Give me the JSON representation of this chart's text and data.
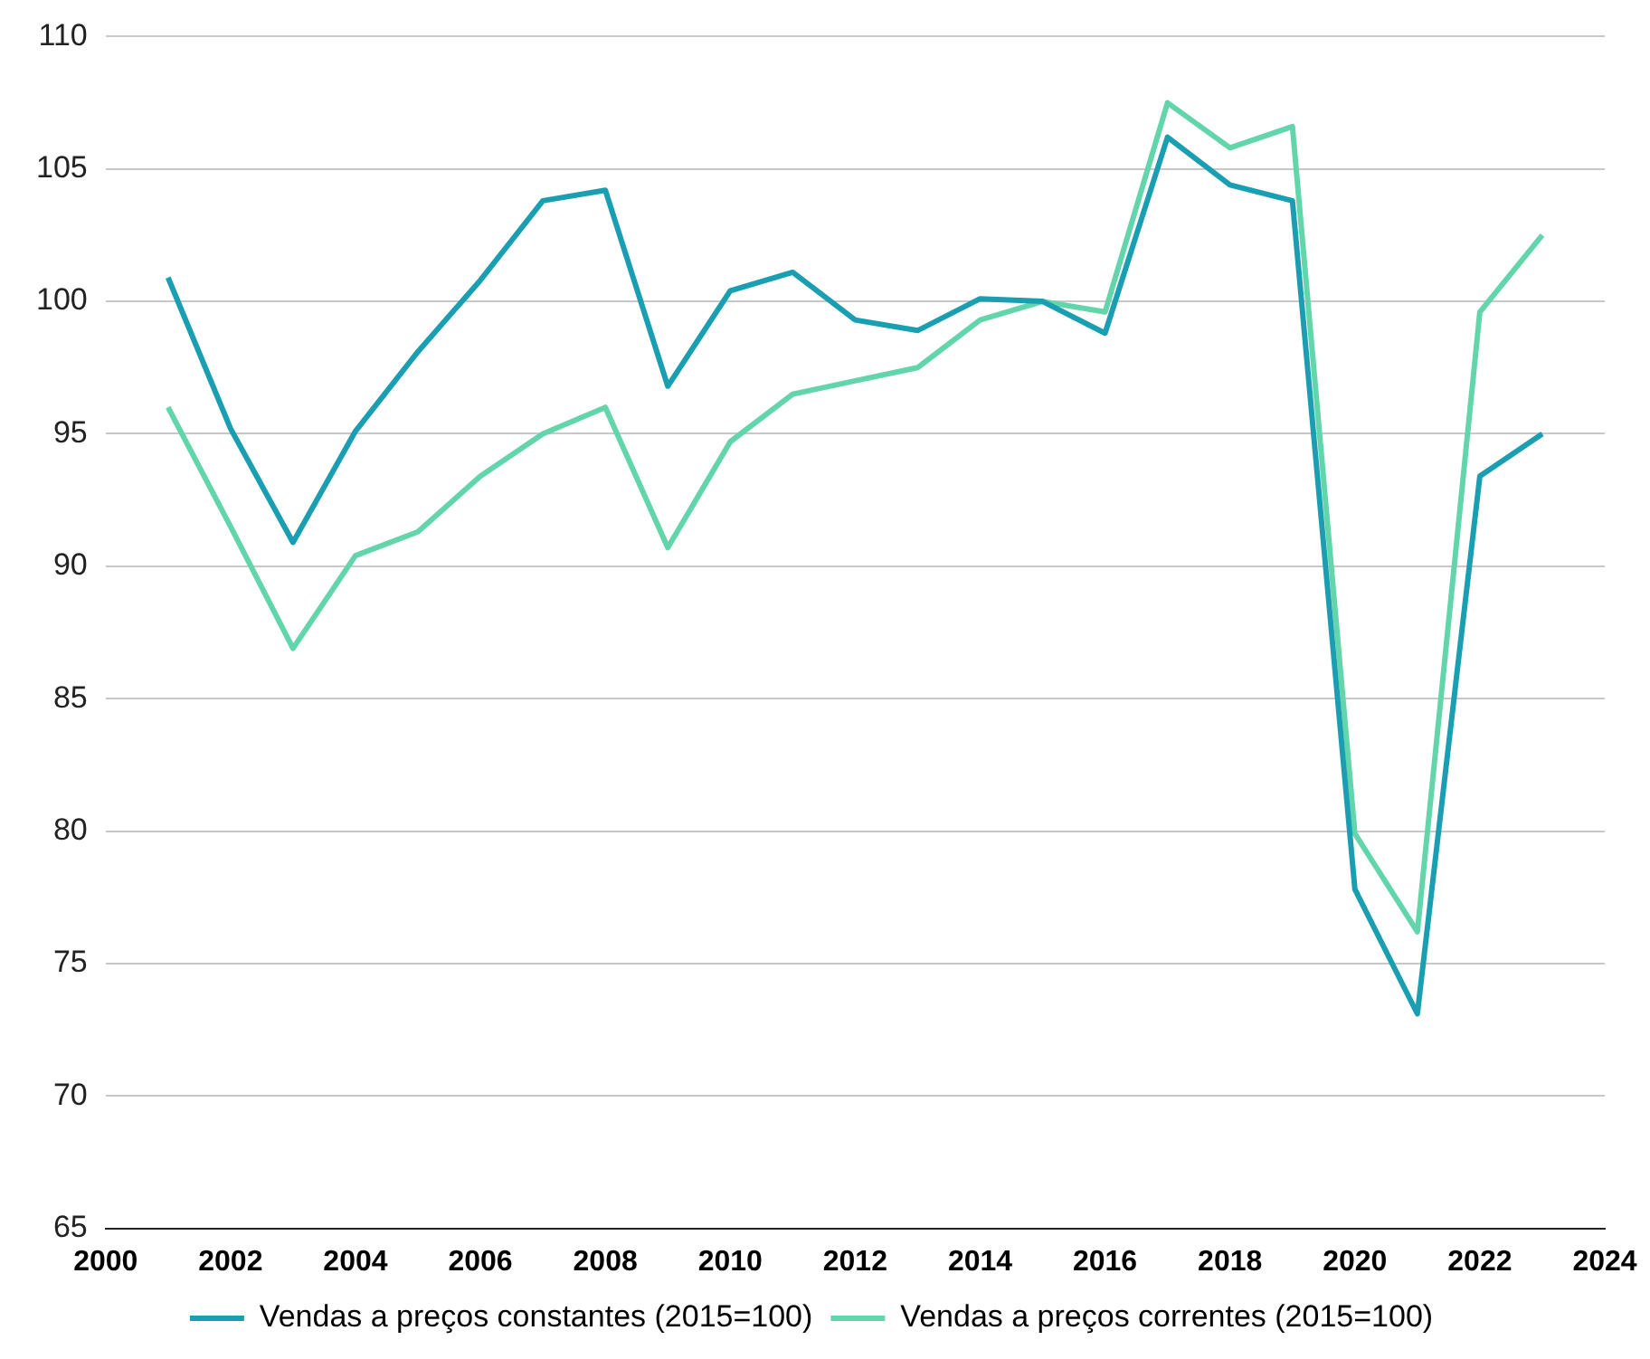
{
  "chart_data": {
    "type": "line",
    "x": [
      2001,
      2002,
      2003,
      2004,
      2005,
      2006,
      2007,
      2008,
      2009,
      2010,
      2011,
      2012,
      2013,
      2014,
      2015,
      2016,
      2017,
      2018,
      2019,
      2020,
      2021,
      2022,
      2023
    ],
    "series": [
      {
        "name": "Vendas a preços constantes (2015=100)",
        "color": "#1a9fb2",
        "values": [
          100.9,
          95.2,
          90.9,
          95.1,
          98.1,
          100.8,
          103.8,
          104.2,
          96.8,
          100.4,
          101.1,
          99.3,
          98.9,
          100.1,
          100,
          98.8,
          106.2,
          104.4,
          103.8,
          77.8,
          73.1,
          93.4,
          95.0
        ]
      },
      {
        "name": "Vendas a preços correntes (2015=100)",
        "color": "#62d6aa",
        "values": [
          96.0,
          91.5,
          86.9,
          90.4,
          91.3,
          93.4,
          95.0,
          96.0,
          90.7,
          94.7,
          96.5,
          97.0,
          97.5,
          99.3,
          100,
          99.6,
          107.5,
          105.8,
          106.6,
          79.9,
          76.2,
          99.6,
          102.5
        ]
      }
    ],
    "xlim": [
      2000,
      2024
    ],
    "xticks": [
      2000,
      2002,
      2004,
      2006,
      2008,
      2010,
      2012,
      2014,
      2016,
      2018,
      2020,
      2022,
      2024
    ],
    "ylim": [
      65,
      110
    ],
    "yticks": [
      65,
      70,
      75,
      80,
      85,
      90,
      95,
      100,
      105,
      110
    ],
    "grid": "y",
    "legend": "bottom",
    "marker": "none",
    "line_style": "solid"
  }
}
